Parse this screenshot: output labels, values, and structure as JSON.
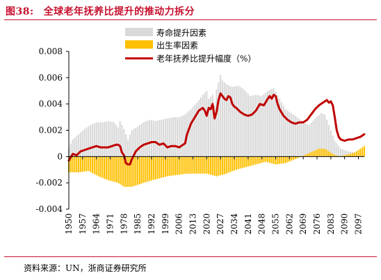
{
  "header": {
    "figure_no": "图38:",
    "title": "全球老年抚养比提升的推动力拆分"
  },
  "source": "资料来源：UN，浙商证券研究所",
  "chart_data": {
    "type": "bar+line",
    "title": "全球老年抚养比提升的推动力拆分",
    "xlabel": "",
    "ylabel": "",
    "ylim": [
      -0.004,
      0.008
    ],
    "yticks": [
      "0.008",
      "0.006",
      "0.004",
      "0.002",
      "0",
      "-0.002",
      "-0.004"
    ],
    "ytick_values": [
      0.008,
      0.006,
      0.004,
      0.002,
      0,
      -0.002,
      -0.004
    ],
    "xlim": [
      1950,
      2100
    ],
    "xticks": [
      "1950",
      "1957",
      "1964",
      "1971",
      "1978",
      "1985",
      "1992",
      "1999",
      "2006",
      "2013",
      "2020",
      "2027",
      "2034",
      "2041",
      "2048",
      "2055",
      "2062",
      "2069",
      "2076",
      "2083",
      "2090",
      "2097"
    ],
    "grid": false,
    "legend_position": "top-center",
    "series": [
      {
        "name": "寿命提升因素",
        "type": "bar",
        "color": "#d9d9d9",
        "points": [
          [
            1950,
            0.0007
          ],
          [
            1952,
            0.0013
          ],
          [
            1955,
            0.0017
          ],
          [
            1958,
            0.0021
          ],
          [
            1961,
            0.0024
          ],
          [
            1964,
            0.0026
          ],
          [
            1967,
            0.0026
          ],
          [
            1970,
            0.0027
          ],
          [
            1973,
            0.0026
          ],
          [
            1975,
            0.0022
          ],
          [
            1976,
            0.0027
          ],
          [
            1978,
            0.0021
          ],
          [
            1980,
            0.0013
          ],
          [
            1982,
            0.002
          ],
          [
            1985,
            0.0023
          ],
          [
            1988,
            0.0026
          ],
          [
            1991,
            0.0028
          ],
          [
            1994,
            0.0027
          ],
          [
            1997,
            0.0028
          ],
          [
            2000,
            0.0029
          ],
          [
            2003,
            0.003
          ],
          [
            2006,
            0.003
          ],
          [
            2009,
            0.0032
          ],
          [
            2012,
            0.0036
          ],
          [
            2015,
            0.0041
          ],
          [
            2018,
            0.0047
          ],
          [
            2020,
            0.005
          ],
          [
            2021,
            0.0044
          ],
          [
            2023,
            0.0047
          ],
          [
            2024,
            0.0039
          ],
          [
            2025,
            0.0051
          ],
          [
            2027,
            0.0062
          ],
          [
            2028,
            0.0058
          ],
          [
            2030,
            0.0055
          ],
          [
            2033,
            0.0053
          ],
          [
            2036,
            0.0054
          ],
          [
            2039,
            0.0051
          ],
          [
            2042,
            0.0046
          ],
          [
            2045,
            0.0047
          ],
          [
            2048,
            0.0046
          ],
          [
            2051,
            0.005
          ],
          [
            2054,
            0.0052
          ],
          [
            2057,
            0.0044
          ],
          [
            2060,
            0.0036
          ],
          [
            2063,
            0.0033
          ],
          [
            2066,
            0.003
          ],
          [
            2069,
            0.0026
          ],
          [
            2072,
            0.0024
          ],
          [
            2075,
            0.0029
          ],
          [
            2078,
            0.0033
          ],
          [
            2080,
            0.0032
          ],
          [
            2082,
            0.0024
          ],
          [
            2085,
            0.0012
          ],
          [
            2088,
            0.0006
          ],
          [
            2092,
            0.0004
          ],
          [
            2096,
            0.0003
          ],
          [
            2100,
            0.0002
          ]
        ]
      },
      {
        "name": "出生率因素",
        "type": "bar",
        "color": "#ffc000",
        "points": [
          [
            1950,
            -0.0012
          ],
          [
            1955,
            -0.0012
          ],
          [
            1960,
            -0.0011
          ],
          [
            1965,
            -0.0015
          ],
          [
            1970,
            -0.0018
          ],
          [
            1975,
            -0.002
          ],
          [
            1978,
            -0.0023
          ],
          [
            1982,
            -0.0023
          ],
          [
            1986,
            -0.0021
          ],
          [
            1990,
            -0.0019
          ],
          [
            1995,
            -0.0017
          ],
          [
            2000,
            -0.0015
          ],
          [
            2005,
            -0.0014
          ],
          [
            2010,
            -0.0013
          ],
          [
            2015,
            -0.0013
          ],
          [
            2020,
            -0.0013
          ],
          [
            2025,
            -0.0015
          ],
          [
            2030,
            -0.0013
          ],
          [
            2035,
            -0.001
          ],
          [
            2040,
            -0.0008
          ],
          [
            2045,
            -0.0006
          ],
          [
            2050,
            -0.0004
          ],
          [
            2055,
            -0.0006
          ],
          [
            2060,
            -0.0005
          ],
          [
            2065,
            -0.0002
          ],
          [
            2068,
            0.0
          ],
          [
            2071,
            0.0002
          ],
          [
            2074,
            0.0004
          ],
          [
            2077,
            0.0006
          ],
          [
            2080,
            0.0006
          ],
          [
            2082,
            0.0004
          ],
          [
            2084,
            0.0002
          ],
          [
            2087,
            0.0
          ],
          [
            2090,
            0.0001
          ],
          [
            2095,
            0.0003
          ],
          [
            2100,
            0.0008
          ]
        ]
      },
      {
        "name": "老年抚养比提升幅度（%）",
        "type": "line",
        "color": "#c00000",
        "points": [
          [
            1950,
            -0.0003
          ],
          [
            1952,
            0.0002
          ],
          [
            1954,
            0.0001
          ],
          [
            1956,
            0.0004
          ],
          [
            1958,
            0.0005
          ],
          [
            1960,
            0.0006
          ],
          [
            1962,
            0.0007
          ],
          [
            1964,
            0.0008
          ],
          [
            1966,
            0.0007
          ],
          [
            1968,
            0.0007
          ],
          [
            1970,
            0.0007
          ],
          [
            1972,
            0.0008
          ],
          [
            1974,
            0.0009
          ],
          [
            1975,
            0.0009
          ],
          [
            1976,
            0.0008
          ],
          [
            1977,
            0.0003
          ],
          [
            1978,
            0.0001
          ],
          [
            1979,
            -0.0005
          ],
          [
            1980,
            -0.0006
          ],
          [
            1981,
            -0.0006
          ],
          [
            1982,
            -0.0002
          ],
          [
            1984,
            0.0004
          ],
          [
            1986,
            0.0007
          ],
          [
            1988,
            0.0009
          ],
          [
            1990,
            0.001
          ],
          [
            1992,
            0.0011
          ],
          [
            1994,
            0.0011
          ],
          [
            1996,
            0.0009
          ],
          [
            1998,
            0.001
          ],
          [
            2000,
            0.0007
          ],
          [
            2002,
            0.0008
          ],
          [
            2004,
            0.0008
          ],
          [
            2006,
            0.0007
          ],
          [
            2008,
            0.0009
          ],
          [
            2009,
            0.001
          ],
          [
            2010,
            0.0017
          ],
          [
            2012,
            0.0025
          ],
          [
            2014,
            0.003
          ],
          [
            2016,
            0.0035
          ],
          [
            2018,
            0.0037
          ],
          [
            2019,
            0.0035
          ],
          [
            2020,
            0.0031
          ],
          [
            2021,
            0.0037
          ],
          [
            2022,
            0.0036
          ],
          [
            2023,
            0.004
          ],
          [
            2024,
            0.0029
          ],
          [
            2025,
            0.0034
          ],
          [
            2026,
            0.0043
          ],
          [
            2027,
            0.0048
          ],
          [
            2028,
            0.0046
          ],
          [
            2029,
            0.0044
          ],
          [
            2030,
            0.0043
          ],
          [
            2031,
            0.0046
          ],
          [
            2032,
            0.0045
          ],
          [
            2033,
            0.004
          ],
          [
            2034,
            0.0038
          ],
          [
            2035,
            0.0037
          ],
          [
            2037,
            0.0034
          ],
          [
            2039,
            0.0032
          ],
          [
            2041,
            0.0031
          ],
          [
            2043,
            0.0032
          ],
          [
            2045,
            0.0035
          ],
          [
            2047,
            0.004
          ],
          [
            2049,
            0.0039
          ],
          [
            2051,
            0.0044
          ],
          [
            2052,
            0.0046
          ],
          [
            2053,
            0.0044
          ],
          [
            2054,
            0.0047
          ],
          [
            2055,
            0.0046
          ],
          [
            2056,
            0.004
          ],
          [
            2057,
            0.0036
          ],
          [
            2059,
            0.0031
          ],
          [
            2061,
            0.0028
          ],
          [
            2063,
            0.0026
          ],
          [
            2065,
            0.0025
          ],
          [
            2067,
            0.0026
          ],
          [
            2069,
            0.0026
          ],
          [
            2071,
            0.0028
          ],
          [
            2073,
            0.0032
          ],
          [
            2075,
            0.0036
          ],
          [
            2077,
            0.0039
          ],
          [
            2079,
            0.0041
          ],
          [
            2080,
            0.0042
          ],
          [
            2081,
            0.0043
          ],
          [
            2082,
            0.0041
          ],
          [
            2083,
            0.0042
          ],
          [
            2084,
            0.0039
          ],
          [
            2085,
            0.003
          ],
          [
            2086,
            0.002
          ],
          [
            2087,
            0.0015
          ],
          [
            2088,
            0.0013
          ],
          [
            2090,
            0.0012
          ],
          [
            2092,
            0.0013
          ],
          [
            2094,
            0.0013
          ],
          [
            2096,
            0.0014
          ],
          [
            2098,
            0.0015
          ],
          [
            2100,
            0.0017
          ]
        ]
      }
    ]
  }
}
